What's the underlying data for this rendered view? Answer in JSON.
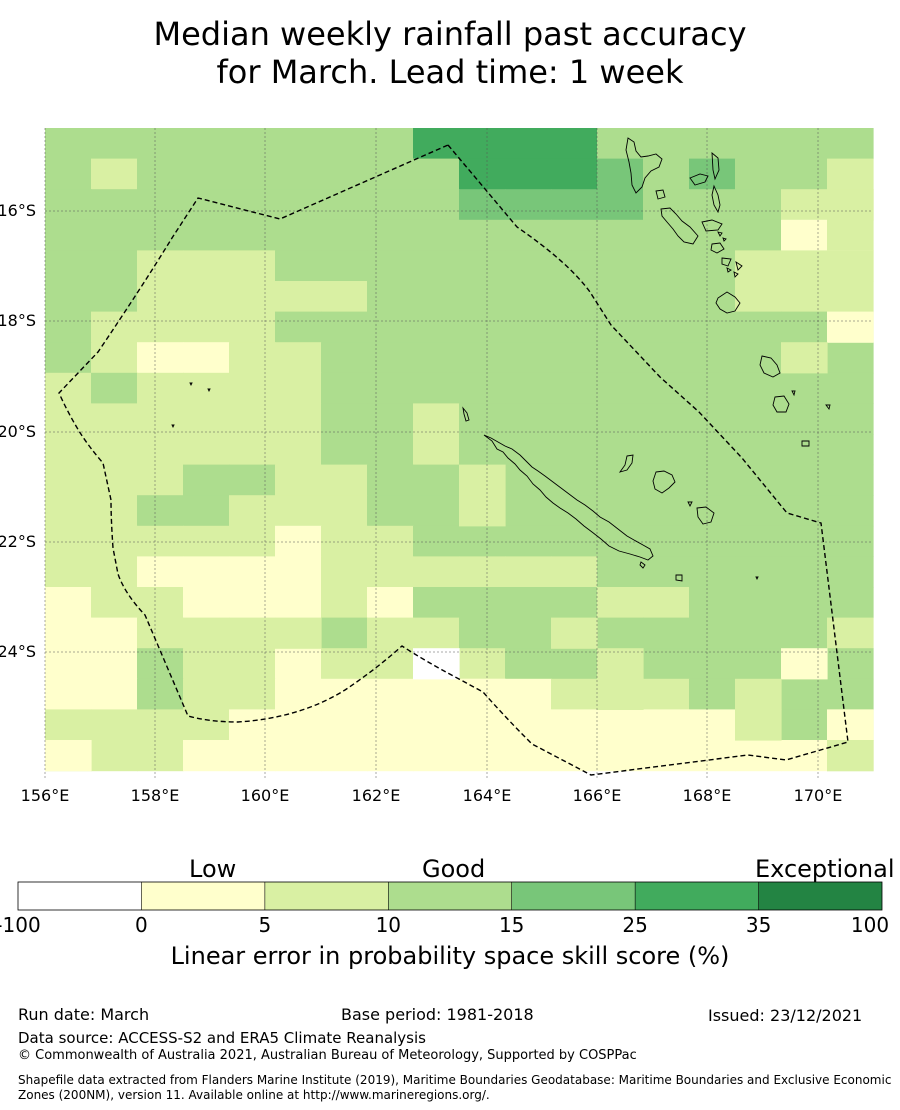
{
  "title": {
    "line1": "Median weekly rainfall past accuracy",
    "line2": "for March. Lead time: 1 week"
  },
  "map": {
    "lat_labels": [
      "16°S",
      "18°S",
      "20°S",
      "22°S",
      "24°S"
    ],
    "lon_labels": [
      "156°E",
      "158°E",
      "160°E",
      "162°E",
      "164°E",
      "166°E",
      "168°E",
      "170°E"
    ]
  },
  "legend": {
    "categories": [
      "Low",
      "Good",
      "Exceptional"
    ],
    "ticks": [
      "-100",
      "0",
      "5",
      "10",
      "15",
      "25",
      "35",
      "100"
    ],
    "colors": [
      "#ffffff",
      "#ffffcc",
      "#d9f0a3",
      "#addd8e",
      "#78c679",
      "#41ab5d",
      "#238443"
    ],
    "title": "Linear error in probability space skill score (%)"
  },
  "footer": {
    "run_date": "Run date: March",
    "base_period": "Base period: 1981-2018",
    "issued": "Issued: 23/12/2021",
    "data_source": "Data source: ACCESS-S2 and ERA5 Climate Reanalysis",
    "copyright": "© Commonwealth of Australia 2021, Australian Bureau of Meteorology, Supported by COSPPac",
    "shapefile": "Shapefile data extracted from Flanders Marine Institute (2019), Maritime Boundaries Geodatabase: Maritime Boundaries and Exclusive Economic Zones (200NM), version 11. Available online at http://www.marineregions.org/."
  }
}
